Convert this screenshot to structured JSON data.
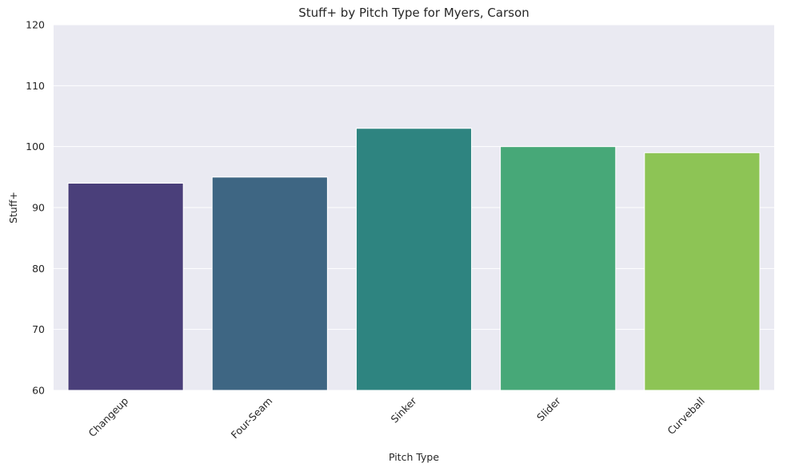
{
  "chart_data": {
    "type": "bar",
    "title": "Stuff+ by Pitch Type for Myers, Carson",
    "xlabel": "Pitch Type",
    "ylabel": "Stuff+",
    "categories": [
      "Changeup",
      "Four-Seam",
      "Sinker",
      "Slider",
      "Curveball"
    ],
    "values": [
      94,
      95,
      103,
      100,
      99
    ],
    "colors": [
      "#4a3f7a",
      "#3e6683",
      "#2e8480",
      "#47a878",
      "#8dc455"
    ],
    "ylim": [
      60,
      120
    ],
    "yticks": [
      "60",
      "70",
      "80",
      "90",
      "100",
      "110",
      "120"
    ],
    "grid": true,
    "background": "#eaeaf2",
    "legend": "none"
  }
}
